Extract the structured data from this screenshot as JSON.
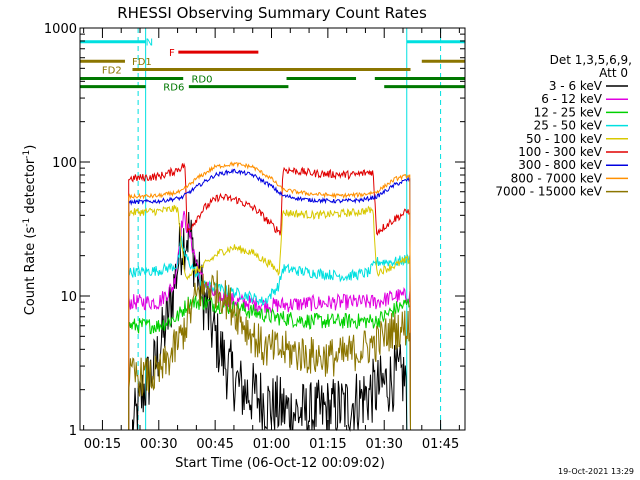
{
  "chart_data": {
    "type": "line",
    "title": "RHESSI Observing Summary Count Rates",
    "xlabel": "Start Time (06-Oct-12 00:09:02)",
    "ylabel_main": "Count Rate (s",
    "ylabel_sup1": "-1",
    "ylabel_mid": " detector",
    "ylabel_sup2": "-1",
    "ylabel_end": ")",
    "yscale": "log",
    "ylim": [
      1,
      1000
    ],
    "xlim_minutes": [
      9.03,
      111.5
    ],
    "x_ticks": [
      {
        "minute": 15,
        "label": "00:15"
      },
      {
        "minute": 30,
        "label": "00:30"
      },
      {
        "minute": 45,
        "label": "00:45"
      },
      {
        "minute": 60,
        "label": "01:00"
      },
      {
        "minute": 75,
        "label": "01:15"
      },
      {
        "minute": 90,
        "label": "01:30"
      },
      {
        "minute": 105,
        "label": "01:45"
      }
    ],
    "y_ticks": [
      {
        "value": 1,
        "label": "1"
      },
      {
        "value": 10,
        "label": "10"
      },
      {
        "value": 100,
        "label": "100"
      },
      {
        "value": 1000,
        "label": "1000"
      }
    ],
    "legend_title": "Det 1,3,5,6,9,",
    "legend_subtitle": "Att 0",
    "timestamp": "19-Oct-2021 13:29",
    "night_intervals": [
      [
        9.03,
        26.5
      ],
      [
        96.0,
        111.5
      ]
    ],
    "saa_markers": [
      24.5,
      105.0
    ],
    "flags": [
      {
        "name": "N",
        "label": "N",
        "color": "#00e0e0",
        "y": 790,
        "segments": [
          [
            9.03,
            26.5
          ],
          [
            96.0,
            111.5
          ]
        ],
        "label_minute": 27.5
      },
      {
        "name": "F",
        "label": "F",
        "color": "#e00000",
        "y": 660,
        "segments": [
          [
            35.2,
            56.5
          ]
        ],
        "label_minute": 33.5
      },
      {
        "name": "FD1",
        "label": "FD1",
        "color": "#8b7500",
        "y": 565,
        "segments": [
          [
            9.03,
            21.0
          ],
          [
            100.0,
            111.5
          ]
        ],
        "label_minute": 25.5
      },
      {
        "name": "FD2",
        "label": "FD2",
        "color": "#8b7500",
        "y": 490,
        "segments": [
          [
            23.0,
            97.0
          ]
        ],
        "label_minute": 17.5
      },
      {
        "name": "RD0",
        "label": "RD0",
        "color": "#007800",
        "y": 420,
        "segments": [
          [
            9.03,
            36.5
          ],
          [
            64.0,
            82.5
          ],
          [
            87.5,
            111.5
          ]
        ],
        "label_minute": 41.5
      },
      {
        "name": "RD6",
        "label": "RD6",
        "color": "#007800",
        "y": 365,
        "segments": [
          [
            9.03,
            26.5
          ],
          [
            38.0,
            64.5
          ],
          [
            90.0,
            111.5
          ]
        ],
        "label_minute": 34.0
      }
    ],
    "series": [
      {
        "name": "3 - 6 keV",
        "color": "#000000",
        "profile": [
          [
            23.0,
            1.0
          ],
          [
            26.0,
            2.0
          ],
          [
            29.0,
            3.0
          ],
          [
            33.0,
            8.0
          ],
          [
            36.0,
            25.0
          ],
          [
            38.0,
            30.0
          ],
          [
            41.0,
            12.0
          ],
          [
            44.0,
            6.0
          ],
          [
            48.0,
            3.0
          ],
          [
            52.0,
            2.0
          ],
          [
            56.0,
            1.8
          ],
          [
            60.0,
            1.5
          ],
          [
            64.0,
            1.4
          ],
          [
            70.0,
            1.3
          ],
          [
            80.0,
            1.5
          ],
          [
            88.0,
            2.0
          ],
          [
            93.0,
            2.5
          ],
          [
            96.0,
            2.5
          ]
        ],
        "noise": 0.5
      },
      {
        "name": "6 - 12 keV",
        "color": "#e000e0",
        "profile": [
          [
            22.0,
            9.0
          ],
          [
            30.0,
            9.0
          ],
          [
            34.0,
            12.0
          ],
          [
            36.5,
            40.0
          ],
          [
            38.0,
            30.0
          ],
          [
            41.0,
            14.0
          ],
          [
            45.0,
            10.0
          ],
          [
            52.0,
            9.0
          ],
          [
            60.0,
            8.5
          ],
          [
            70.0,
            8.8
          ],
          [
            80.0,
            9.0
          ],
          [
            88.0,
            9.0
          ],
          [
            93.0,
            10.0
          ],
          [
            97.0,
            10.0
          ]
        ],
        "noise": 0.12
      },
      {
        "name": "12 - 25 keV",
        "color": "#00d000",
        "profile": [
          [
            22.0,
            6.0
          ],
          [
            30.0,
            6.0
          ],
          [
            35.0,
            7.0
          ],
          [
            38.0,
            9.0
          ],
          [
            42.0,
            9.0
          ],
          [
            46.0,
            8.5
          ],
          [
            52.0,
            8.0
          ],
          [
            60.0,
            7.0
          ],
          [
            70.0,
            6.5
          ],
          [
            80.0,
            6.5
          ],
          [
            88.0,
            6.5
          ],
          [
            93.0,
            8.0
          ],
          [
            97.0,
            9.0
          ]
        ],
        "noise": 0.12
      },
      {
        "name": "25 - 50 keV",
        "color": "#00e0e0",
        "profile": [
          [
            22.0,
            15.0
          ],
          [
            30.0,
            15.5
          ],
          [
            35.0,
            17.0
          ],
          [
            36.0,
            26.0
          ],
          [
            37.0,
            20.0
          ],
          [
            42.0,
            12.0
          ],
          [
            48.0,
            11.0
          ],
          [
            54.0,
            10.0
          ],
          [
            58.0,
            9.0
          ],
          [
            62.0,
            12.0
          ],
          [
            63.0,
            16.0
          ],
          [
            70.0,
            15.0
          ],
          [
            80.0,
            14.0
          ],
          [
            86.0,
            15.0
          ],
          [
            88.0,
            18.0
          ],
          [
            93.0,
            18.0
          ],
          [
            97.0,
            19.0
          ]
        ],
        "noise": 0.08
      },
      {
        "name": "50 - 100 keV",
        "color": "#d8c800",
        "profile": [
          [
            22.0,
            42.0
          ],
          [
            30.0,
            43.0
          ],
          [
            35.0,
            45.0
          ],
          [
            37.0,
            14.0
          ],
          [
            41.0,
            16.0
          ],
          [
            46.0,
            21.0
          ],
          [
            50.0,
            23.0
          ],
          [
            55.0,
            21.0
          ],
          [
            60.0,
            17.0
          ],
          [
            62.0,
            15.0
          ],
          [
            63.0,
            42.0
          ],
          [
            72.0,
            40.0
          ],
          [
            82.0,
            42.0
          ],
          [
            87.0,
            44.0
          ],
          [
            88.0,
            15.0
          ],
          [
            93.0,
            17.0
          ],
          [
            97.0,
            19.0
          ]
        ],
        "noise": 0.06
      },
      {
        "name": "100 - 300 keV",
        "color": "#e00000",
        "profile": [
          [
            22.0,
            75.0
          ],
          [
            30.0,
            78.0
          ],
          [
            34.0,
            85.0
          ],
          [
            37.0,
            95.0
          ],
          [
            37.5,
            30.0
          ],
          [
            42.0,
            45.0
          ],
          [
            46.0,
            55.0
          ],
          [
            51.0,
            52.0
          ],
          [
            56.0,
            44.0
          ],
          [
            61.0,
            32.0
          ],
          [
            62.5,
            30.0
          ],
          [
            63.0,
            88.0
          ],
          [
            72.0,
            82.0
          ],
          [
            82.0,
            80.0
          ],
          [
            87.0,
            85.0
          ],
          [
            88.0,
            30.0
          ],
          [
            93.0,
            38.0
          ],
          [
            97.0,
            44.0
          ]
        ],
        "noise": 0.06
      },
      {
        "name": "300 - 800 keV",
        "color": "#0000e0",
        "profile": [
          [
            22.0,
            50.0
          ],
          [
            30.0,
            51.0
          ],
          [
            36.0,
            54.0
          ],
          [
            40.0,
            65.0
          ],
          [
            45.0,
            80.0
          ],
          [
            50.0,
            86.0
          ],
          [
            55.0,
            80.0
          ],
          [
            60.0,
            66.0
          ],
          [
            63.0,
            56.0
          ],
          [
            70.0,
            52.0
          ],
          [
            78.0,
            51.0
          ],
          [
            84.0,
            52.0
          ],
          [
            88.0,
            55.0
          ],
          [
            93.0,
            68.0
          ],
          [
            97.0,
            75.0
          ]
        ],
        "noise": 0.03
      },
      {
        "name": "800 - 7000 keV",
        "color": "#ff9000",
        "profile": [
          [
            22.0,
            55.0
          ],
          [
            30.0,
            56.0
          ],
          [
            36.0,
            60.0
          ],
          [
            40.0,
            75.0
          ],
          [
            45.0,
            92.0
          ],
          [
            50.0,
            97.0
          ],
          [
            55.0,
            92.0
          ],
          [
            60.0,
            75.0
          ],
          [
            63.0,
            62.0
          ],
          [
            70.0,
            58.0
          ],
          [
            78.0,
            56.0
          ],
          [
            84.0,
            57.0
          ],
          [
            88.0,
            60.0
          ],
          [
            93.0,
            75.0
          ],
          [
            97.0,
            80.0
          ]
        ],
        "noise": 0.03
      },
      {
        "name": "7000 - 15000 keV",
        "color": "#8b7500",
        "profile": [
          [
            22.0,
            2.5
          ],
          [
            28.0,
            2.5
          ],
          [
            30.0,
            2.6
          ],
          [
            33.0,
            3.5
          ],
          [
            36.0,
            5.0
          ],
          [
            38.0,
            7.0
          ],
          [
            40.0,
            10.0
          ],
          [
            43.0,
            12.0
          ],
          [
            46.0,
            11.0
          ],
          [
            50.0,
            8.0
          ],
          [
            54.0,
            5.5
          ],
          [
            58.0,
            4.0
          ],
          [
            62.0,
            4.0
          ],
          [
            66.0,
            3.8
          ],
          [
            72.0,
            3.5
          ],
          [
            78.0,
            3.5
          ],
          [
            84.0,
            4.0
          ],
          [
            88.0,
            4.5
          ],
          [
            92.0,
            5.5
          ],
          [
            97.0,
            6.0
          ]
        ],
        "noise": 0.3
      }
    ]
  }
}
